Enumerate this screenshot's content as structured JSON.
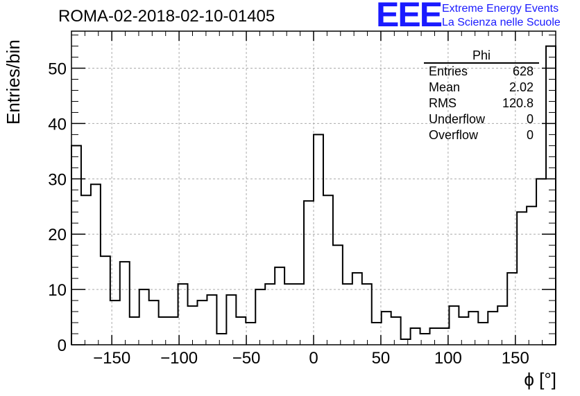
{
  "title": "ROMA-02-2018-02-10-01405",
  "logo": {
    "mark": "EEE",
    "line1": "Extreme Energy Events",
    "line2": "La Scienza nelle Scuole"
  },
  "stats": {
    "name": "Phi",
    "rows": [
      {
        "label": "Entries",
        "value": "628"
      },
      {
        "label": "Mean",
        "value": "2.02"
      },
      {
        "label": "RMS",
        "value": "120.8"
      },
      {
        "label": "Underflow",
        "value": "0"
      },
      {
        "label": "Overflow",
        "value": "0"
      }
    ]
  },
  "chart_data": {
    "type": "bar",
    "style": "step-histogram",
    "ylabel": "Entries/bin",
    "xlabel": "ϕ [°]",
    "xlim": [
      -180,
      180
    ],
    "ylim": [
      0,
      56.7
    ],
    "bin_width": 7.2,
    "grid": true,
    "xticks": [
      -150,
      -100,
      -50,
      0,
      50,
      100,
      150
    ],
    "xtick_labels": [
      "−150",
      "−100",
      "−50",
      "0",
      "50",
      "100",
      "150"
    ],
    "yticks": [
      0,
      10,
      20,
      30,
      40,
      50
    ],
    "ytick_labels": [
      "0",
      "10",
      "20",
      "30",
      "40",
      "50"
    ],
    "values": [
      36,
      27,
      29,
      16,
      8,
      15,
      5,
      10,
      8,
      5,
      5,
      11,
      7,
      8,
      9,
      2,
      9,
      5,
      4,
      10,
      11,
      14,
      11,
      11,
      26,
      38,
      27,
      18,
      11,
      13,
      11,
      4,
      6,
      5,
      1,
      3,
      2,
      3,
      3,
      7,
      5,
      6,
      4,
      6,
      7,
      13,
      24,
      25,
      30,
      54
    ]
  }
}
